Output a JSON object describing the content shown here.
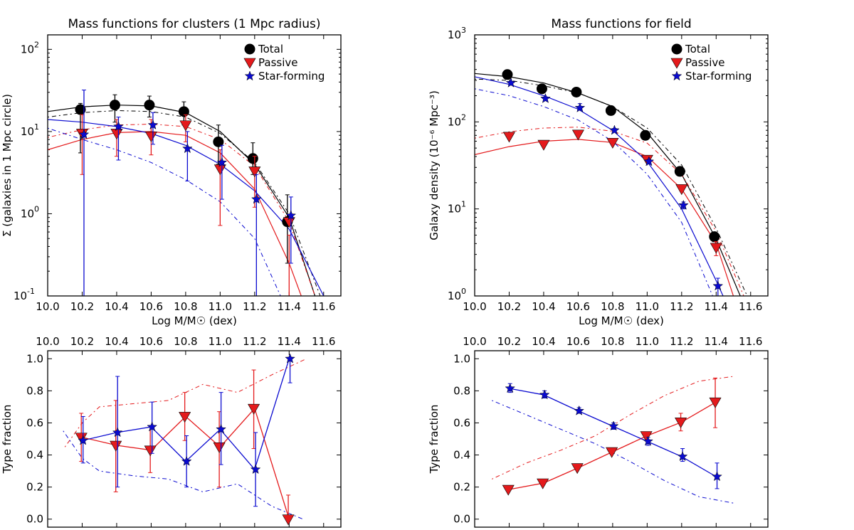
{
  "colors": {
    "total": "#000000",
    "passive": "#e41a1c",
    "starforming": "#0a0ad0"
  },
  "legend": [
    "Total",
    "Passive",
    "Star-forming"
  ],
  "chart_data": [
    {
      "id": "cluster-mf",
      "type": "scatter",
      "title": "Mass functions for clusters (1 Mpc radius)",
      "xlabel": "Log M/M☉ (dex)",
      "ylabel": "Σ (galaxies in 1 Mpc circle)",
      "xscale": "linear",
      "yscale": "log",
      "xlim": [
        10.0,
        11.7
      ],
      "ylim": [
        0.1,
        150
      ],
      "xticks": [
        "10.0",
        "10.2",
        "10.4",
        "10.6",
        "10.8",
        "11.0",
        "11.2",
        "11.4",
        "11.6"
      ],
      "yticks": [
        "10^-1",
        "10^0",
        "10^1",
        "10^2"
      ],
      "legend_position": "top-right",
      "series": [
        {
          "name": "Total",
          "marker": "circle",
          "color": "total",
          "x": [
            10.2,
            10.4,
            10.6,
            10.8,
            11.0,
            11.2,
            11.4
          ],
          "y": [
            18.5,
            21,
            21,
            17.5,
            7.5,
            4.7,
            0.8
          ],
          "err_low": [
            5.5,
            13,
            15,
            12,
            4,
            3,
            0.25
          ],
          "err_high": [
            22,
            28,
            27,
            23,
            12,
            7.3,
            1.7
          ]
        },
        {
          "name": "Passive",
          "marker": "triangle-down",
          "color": "passive",
          "x": [
            10.2,
            10.4,
            10.6,
            10.8,
            11.0,
            11.2,
            11.4
          ],
          "y": [
            9.5,
            9.5,
            8.8,
            12,
            3.5,
            3.3,
            0.8
          ],
          "err_low": [
            3,
            5,
            5.2,
            7.5,
            0.72,
            1.2,
            0.1
          ],
          "err_high": [
            16,
            14,
            14,
            16,
            6,
            5,
            0.55
          ]
        },
        {
          "name": "Star-forming",
          "marker": "star",
          "color": "starforming",
          "x": [
            10.2,
            10.4,
            10.6,
            10.8,
            11.0,
            11.2,
            11.4
          ],
          "y": [
            9.2,
            11.5,
            12,
            6.2,
            4.2,
            1.5,
            0.95
          ],
          "err_low": [
            0.1,
            4.5,
            7,
            2.5,
            1.5,
            0.1,
            0.25
          ],
          "err_high": [
            32,
            15,
            17,
            10,
            6.8,
            3,
            1.6
          ]
        }
      ],
      "fits": [
        {
          "color": "total",
          "style": "solid",
          "x": [
            10.0,
            10.2,
            10.4,
            10.6,
            10.8,
            11.0,
            11.2,
            11.4,
            11.55
          ],
          "y": [
            17.5,
            20,
            21,
            20.5,
            17,
            10,
            4,
            0.9,
            0.1
          ]
        },
        {
          "color": "total",
          "style": "dotted",
          "x": [
            10.0,
            10.2,
            10.4,
            10.6,
            10.8,
            11.0,
            11.2,
            11.4,
            11.58
          ],
          "y": [
            15,
            17,
            18,
            17.5,
            15,
            9.5,
            4.2,
            1.0,
            0.1
          ]
        },
        {
          "color": "passive",
          "style": "solid",
          "x": [
            10.0,
            10.2,
            10.4,
            10.6,
            10.8,
            11.0,
            11.2,
            11.4,
            11.47
          ],
          "y": [
            6,
            8,
            9.7,
            10,
            9,
            5.5,
            2,
            0.25,
            0.1
          ]
        },
        {
          "color": "passive",
          "style": "dotted",
          "x": [
            10.0,
            10.2,
            10.4,
            10.6,
            10.8,
            11.0,
            11.2,
            11.4,
            11.55
          ],
          "y": [
            8.5,
            10.5,
            12,
            12.3,
            11.5,
            8,
            3.8,
            0.8,
            0.1
          ]
        },
        {
          "color": "starforming",
          "style": "solid",
          "x": [
            10.0,
            10.2,
            10.4,
            10.6,
            10.8,
            11.0,
            11.2,
            11.4,
            11.6
          ],
          "y": [
            14,
            13,
            11.5,
            9.5,
            6.8,
            4,
            1.9,
            0.65,
            0.1
          ]
        },
        {
          "color": "starforming",
          "style": "dotted",
          "x": [
            10.0,
            10.2,
            10.4,
            10.6,
            10.8,
            11.0,
            11.2,
            11.35
          ],
          "y": [
            11,
            8,
            6,
            4.2,
            2.6,
            1.4,
            0.5,
            0.1
          ]
        }
      ]
    },
    {
      "id": "field-mf",
      "type": "scatter",
      "title": "Mass functions for field",
      "xlabel": "Log M/M☉ (dex)",
      "ylabel": "Galaxy density (10⁻⁶ Mpc⁻³)",
      "xscale": "linear",
      "yscale": "log",
      "xlim": [
        10.0,
        11.7
      ],
      "ylim": [
        1,
        1000
      ],
      "xticks": [
        "10.0",
        "10.2",
        "10.4",
        "10.6",
        "10.8",
        "11.0",
        "11.2",
        "11.4",
        "11.6"
      ],
      "yticks": [
        "10^0",
        "10^1",
        "10^2",
        "10^3"
      ],
      "legend_position": "top-right",
      "series": [
        {
          "name": "Total",
          "marker": "circle",
          "color": "total",
          "x": [
            10.2,
            10.4,
            10.6,
            10.8,
            11.0,
            11.2,
            11.4
          ],
          "y": [
            350,
            240,
            220,
            135,
            70,
            27,
            4.8
          ],
          "err_low": [
            330,
            228,
            210,
            130,
            67,
            25.5,
            4.2
          ],
          "err_high": [
            370,
            252,
            230,
            140,
            73,
            28.5,
            5.4
          ]
        },
        {
          "name": "Passive",
          "marker": "triangle-down",
          "color": "passive",
          "x": [
            10.2,
            10.4,
            10.6,
            10.8,
            11.0,
            11.2,
            11.4
          ],
          "y": [
            68,
            55,
            72,
            58,
            37,
            17,
            3.6
          ],
          "err_low": [
            65,
            52,
            69,
            55.5,
            35.5,
            16,
            2.9
          ],
          "err_high": [
            71,
            58,
            75,
            60.5,
            38.5,
            18,
            4.2
          ]
        },
        {
          "name": "Star-forming",
          "marker": "star",
          "color": "starforming",
          "x": [
            10.2,
            10.4,
            10.6,
            10.8,
            11.0,
            11.2,
            11.4
          ],
          "y": [
            280,
            185,
            145,
            80,
            35,
            11,
            1.3
          ],
          "err_low": [
            268,
            176,
            138,
            76,
            33,
            10,
            1.0
          ],
          "err_high": [
            292,
            194,
            162,
            84,
            37,
            12,
            1.6
          ]
        }
      ],
      "fits": [
        {
          "color": "total",
          "style": "solid",
          "x": [
            10.0,
            10.2,
            10.4,
            10.6,
            10.8,
            11.0,
            11.2,
            11.4,
            11.54
          ],
          "y": [
            360,
            330,
            280,
            215,
            150,
            75,
            25,
            4.5,
            1
          ]
        },
        {
          "color": "total",
          "style": "dotted",
          "x": [
            10.0,
            10.2,
            10.4,
            10.6,
            10.8,
            11.0,
            11.2,
            11.4,
            11.58
          ],
          "y": [
            310,
            300,
            260,
            215,
            150,
            85,
            32,
            6,
            1
          ]
        },
        {
          "color": "passive",
          "style": "solid",
          "x": [
            10.0,
            10.2,
            10.4,
            10.6,
            10.8,
            11.0,
            11.2,
            11.4,
            11.5
          ],
          "y": [
            42,
            52,
            60,
            63,
            58,
            40,
            17,
            4,
            1
          ]
        },
        {
          "color": "passive",
          "style": "dotted",
          "x": [
            10.0,
            10.2,
            10.4,
            10.6,
            10.8,
            11.0,
            11.2,
            11.4,
            11.56
          ],
          "y": [
            65,
            77,
            85,
            87,
            78,
            57,
            25,
            5.5,
            1
          ]
        },
        {
          "color": "starforming",
          "style": "solid",
          "x": [
            10.0,
            10.2,
            10.4,
            10.6,
            10.8,
            11.0,
            11.2,
            11.4,
            11.44
          ],
          "y": [
            330,
            270,
            200,
            140,
            80,
            35,
            10,
            1.5,
            1
          ]
        },
        {
          "color": "starforming",
          "style": "dotted",
          "x": [
            10.0,
            10.2,
            10.4,
            10.6,
            10.8,
            11.0,
            11.2,
            11.38
          ],
          "y": [
            240,
            200,
            150,
            105,
            60,
            25,
            7,
            1
          ]
        }
      ]
    },
    {
      "id": "cluster-frac",
      "type": "line",
      "title": "",
      "xlabel": "",
      "ylabel": "Type fraction",
      "xscale": "linear",
      "yscale": "linear",
      "xlim": [
        10.0,
        11.7
      ],
      "ylim": [
        -0.05,
        1.05
      ],
      "xticks": [
        "10.0",
        "10.2",
        "10.4",
        "10.6",
        "10.8",
        "11.0",
        "11.2",
        "11.4",
        "11.6"
      ],
      "yticks": [
        "0.0",
        "0.2",
        "0.4",
        "0.6",
        "0.8",
        "1.0"
      ],
      "xticks_position": "top",
      "series": [
        {
          "name": "Passive",
          "marker": "triangle-down",
          "color": "passive",
          "x": [
            10.2,
            10.4,
            10.6,
            10.8,
            11.0,
            11.2,
            11.4
          ],
          "y": [
            0.51,
            0.46,
            0.43,
            0.64,
            0.45,
            0.69,
            0.0
          ],
          "err_low": [
            0.36,
            0.17,
            0.29,
            0.49,
            0.2,
            0.44,
            0.0
          ],
          "err_high": [
            0.66,
            0.74,
            0.58,
            0.79,
            0.67,
            0.93,
            0.15
          ]
        },
        {
          "name": "Star-forming",
          "marker": "star",
          "color": "starforming",
          "x": [
            10.2,
            10.4,
            10.6,
            10.8,
            11.0,
            11.2,
            11.4
          ],
          "y": [
            0.49,
            0.54,
            0.575,
            0.36,
            0.56,
            0.31,
            1.0
          ],
          "err_low": [
            0.35,
            0.2,
            0.41,
            0.2,
            0.34,
            0.08,
            0.85
          ],
          "err_high": [
            0.64,
            0.89,
            0.73,
            0.52,
            0.79,
            0.54,
            1.0
          ]
        }
      ],
      "fits": [
        {
          "color": "passive",
          "style": "dotted",
          "x": [
            10.1,
            10.2,
            10.3,
            10.5,
            10.7,
            10.9,
            11.1,
            11.3,
            11.5
          ],
          "y": [
            0.45,
            0.6,
            0.7,
            0.72,
            0.74,
            0.84,
            0.79,
            0.9,
            1.0
          ]
        },
        {
          "color": "starforming",
          "style": "dotted",
          "x": [
            10.09,
            10.2,
            10.3,
            10.5,
            10.7,
            10.9,
            11.1,
            11.3,
            11.48
          ],
          "y": [
            0.55,
            0.38,
            0.3,
            0.27,
            0.25,
            0.17,
            0.22,
            0.08,
            0.0
          ]
        }
      ]
    },
    {
      "id": "field-frac",
      "type": "line",
      "title": "",
      "xlabel": "",
      "ylabel": "Type fraction",
      "xscale": "linear",
      "yscale": "linear",
      "xlim": [
        10.0,
        11.7
      ],
      "ylim": [
        -0.05,
        1.05
      ],
      "xticks": [
        "10.0",
        "10.2",
        "10.4",
        "10.6",
        "10.8",
        "11.0",
        "11.2",
        "11.4",
        "11.6"
      ],
      "yticks": [
        "0.0",
        "0.2",
        "0.4",
        "0.6",
        "0.8",
        "1.0"
      ],
      "xticks_position": "top",
      "series": [
        {
          "name": "Passive",
          "marker": "triangle-down",
          "color": "passive",
          "x": [
            10.2,
            10.4,
            10.6,
            10.8,
            11.0,
            11.2,
            11.4
          ],
          "y": [
            0.185,
            0.225,
            0.32,
            0.42,
            0.52,
            0.605,
            0.73
          ],
          "err_low": [
            0.175,
            0.215,
            0.31,
            0.41,
            0.505,
            0.55,
            0.57
          ],
          "err_high": [
            0.195,
            0.235,
            0.33,
            0.43,
            0.535,
            0.66,
            0.88
          ]
        },
        {
          "name": "Star-forming",
          "marker": "star",
          "color": "starforming",
          "x": [
            10.2,
            10.4,
            10.6,
            10.8,
            11.0,
            11.2,
            11.4
          ],
          "y": [
            0.815,
            0.775,
            0.675,
            0.58,
            0.485,
            0.39,
            0.265
          ],
          "err_low": [
            0.79,
            0.755,
            0.66,
            0.56,
            0.46,
            0.36,
            0.19
          ],
          "err_high": [
            0.845,
            0.8,
            0.695,
            0.6,
            0.51,
            0.44,
            0.35
          ]
        }
      ],
      "fits": [
        {
          "color": "passive",
          "style": "dotted",
          "x": [
            10.1,
            10.3,
            10.5,
            10.7,
            10.9,
            11.1,
            11.3,
            11.5
          ],
          "y": [
            0.25,
            0.35,
            0.43,
            0.52,
            0.65,
            0.77,
            0.86,
            0.89
          ]
        },
        {
          "color": "starforming",
          "style": "dotted",
          "x": [
            10.1,
            10.3,
            10.5,
            10.7,
            10.9,
            11.1,
            11.3,
            11.5
          ],
          "y": [
            0.74,
            0.65,
            0.56,
            0.47,
            0.36,
            0.24,
            0.14,
            0.1
          ]
        }
      ]
    }
  ]
}
